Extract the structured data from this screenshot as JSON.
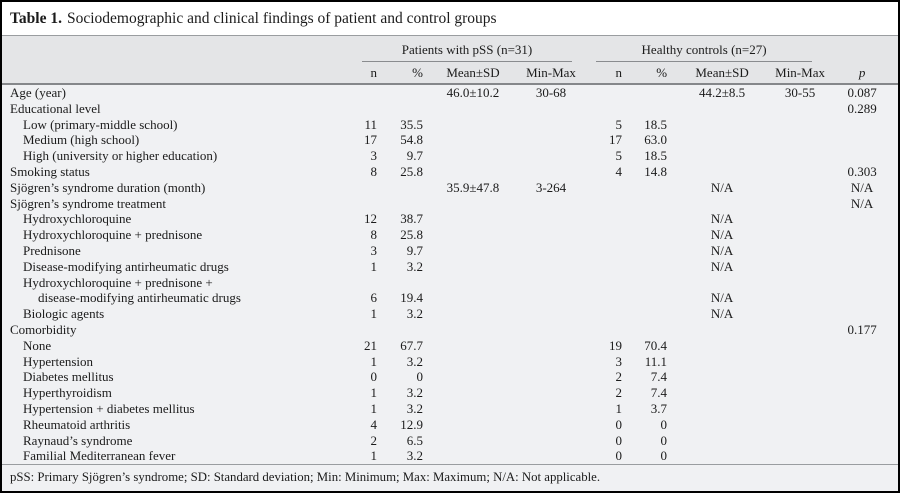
{
  "title": {
    "label": "Table 1.",
    "text": "Sociodemographic and clinical findings of patient and control groups"
  },
  "header": {
    "group1": "Patients with pSS (n=31)",
    "group2": "Healthy controls (n=27)",
    "subcols": [
      "n",
      "%",
      "Mean±SD",
      "Min-Max"
    ],
    "p": "p"
  },
  "rows": [
    {
      "label": "Age (year)",
      "indent": 0,
      "mean1": "46.0±10.2",
      "minmax1": "30-68",
      "mean2": "44.2±8.5",
      "minmax2": "30-55",
      "p": "0.087"
    },
    {
      "label": "Educational level",
      "indent": 0,
      "p": "0.289"
    },
    {
      "label": "Low (primary-middle school)",
      "indent": 1,
      "n1": "11",
      "pct1": "35.5",
      "n2": "5",
      "pct2": "18.5"
    },
    {
      "label": "Medium (high school)",
      "indent": 1,
      "n1": "17",
      "pct1": "54.8",
      "n2": "17",
      "pct2": "63.0"
    },
    {
      "label": "High (university or higher education)",
      "indent": 1,
      "n1": "3",
      "pct1": "9.7",
      "n2": "5",
      "pct2": "18.5"
    },
    {
      "label": "Smoking status",
      "indent": 0,
      "n1": "8",
      "pct1": "25.8",
      "n2": "4",
      "pct2": "14.8",
      "p": "0.303"
    },
    {
      "label": "Sjögren’s syndrome duration (month)",
      "indent": 0,
      "mean1": "35.9±47.8",
      "minmax1": "3-264",
      "mean2": "N/A",
      "p": "N/A"
    },
    {
      "label": "Sjögren’s syndrome treatment",
      "indent": 0,
      "p": "N/A"
    },
    {
      "label": "Hydroxychloroquine",
      "indent": 1,
      "n1": "12",
      "pct1": "38.7",
      "mean2": "N/A"
    },
    {
      "label": "Hydroxychloroquine + prednisone",
      "indent": 1,
      "n1": "8",
      "pct1": "25.8",
      "mean2": "N/A"
    },
    {
      "label": "Prednisone",
      "indent": 1,
      "n1": "3",
      "pct1": "9.7",
      "mean2": "N/A"
    },
    {
      "label": "Disease-modifying antirheumatic drugs",
      "indent": 1,
      "n1": "1",
      "pct1": "3.2",
      "mean2": "N/A"
    },
    {
      "label": "Hydroxychloroquine + prednisone +",
      "indent": 1
    },
    {
      "label": "disease-modifying antirheumatic drugs",
      "indent": 2,
      "n1": "6",
      "pct1": "19.4",
      "mean2": "N/A"
    },
    {
      "label": "Biologic agents",
      "indent": 1,
      "n1": "1",
      "pct1": "3.2",
      "mean2": "N/A"
    },
    {
      "label": "Comorbidity",
      "indent": 0,
      "p": "0.177"
    },
    {
      "label": "None",
      "indent": 1,
      "n1": "21",
      "pct1": "67.7",
      "n2": "19",
      "pct2": "70.4"
    },
    {
      "label": "Hypertension",
      "indent": 1,
      "n1": "1",
      "pct1": "3.2",
      "n2": "3",
      "pct2": "11.1"
    },
    {
      "label": "Diabetes mellitus",
      "indent": 1,
      "n1": "0",
      "pct1": "0",
      "n2": "2",
      "pct2": "7.4"
    },
    {
      "label": "Hyperthyroidism",
      "indent": 1,
      "n1": "1",
      "pct1": "3.2",
      "n2": "2",
      "pct2": "7.4"
    },
    {
      "label": "Hypertension + diabetes mellitus",
      "indent": 1,
      "n1": "1",
      "pct1": "3.2",
      "n2": "1",
      "pct2": "3.7"
    },
    {
      "label": "Rheumatoid arthritis",
      "indent": 1,
      "n1": "4",
      "pct1": "12.9",
      "n2": "0",
      "pct2": "0"
    },
    {
      "label": "Raynaud’s syndrome",
      "indent": 1,
      "n1": "2",
      "pct1": "6.5",
      "n2": "0",
      "pct2": "0"
    },
    {
      "label": "Familial Mediterranean fever",
      "indent": 1,
      "n1": "1",
      "pct1": "3.2",
      "n2": "0",
      "pct2": "0"
    }
  ],
  "footnote": "pSS: Primary Sjögren’s syndrome; SD: Standard deviation; Min: Minimum; Max: Maximum; N/A: Not applicable.",
  "colors": {
    "header_bg": "#e4e5e7",
    "body_bg": "#f0f1f3",
    "outer_border": "#000000",
    "heavy_rule": "#85878a",
    "light_rule": "#9a9da0",
    "text": "#1b1b1b"
  }
}
